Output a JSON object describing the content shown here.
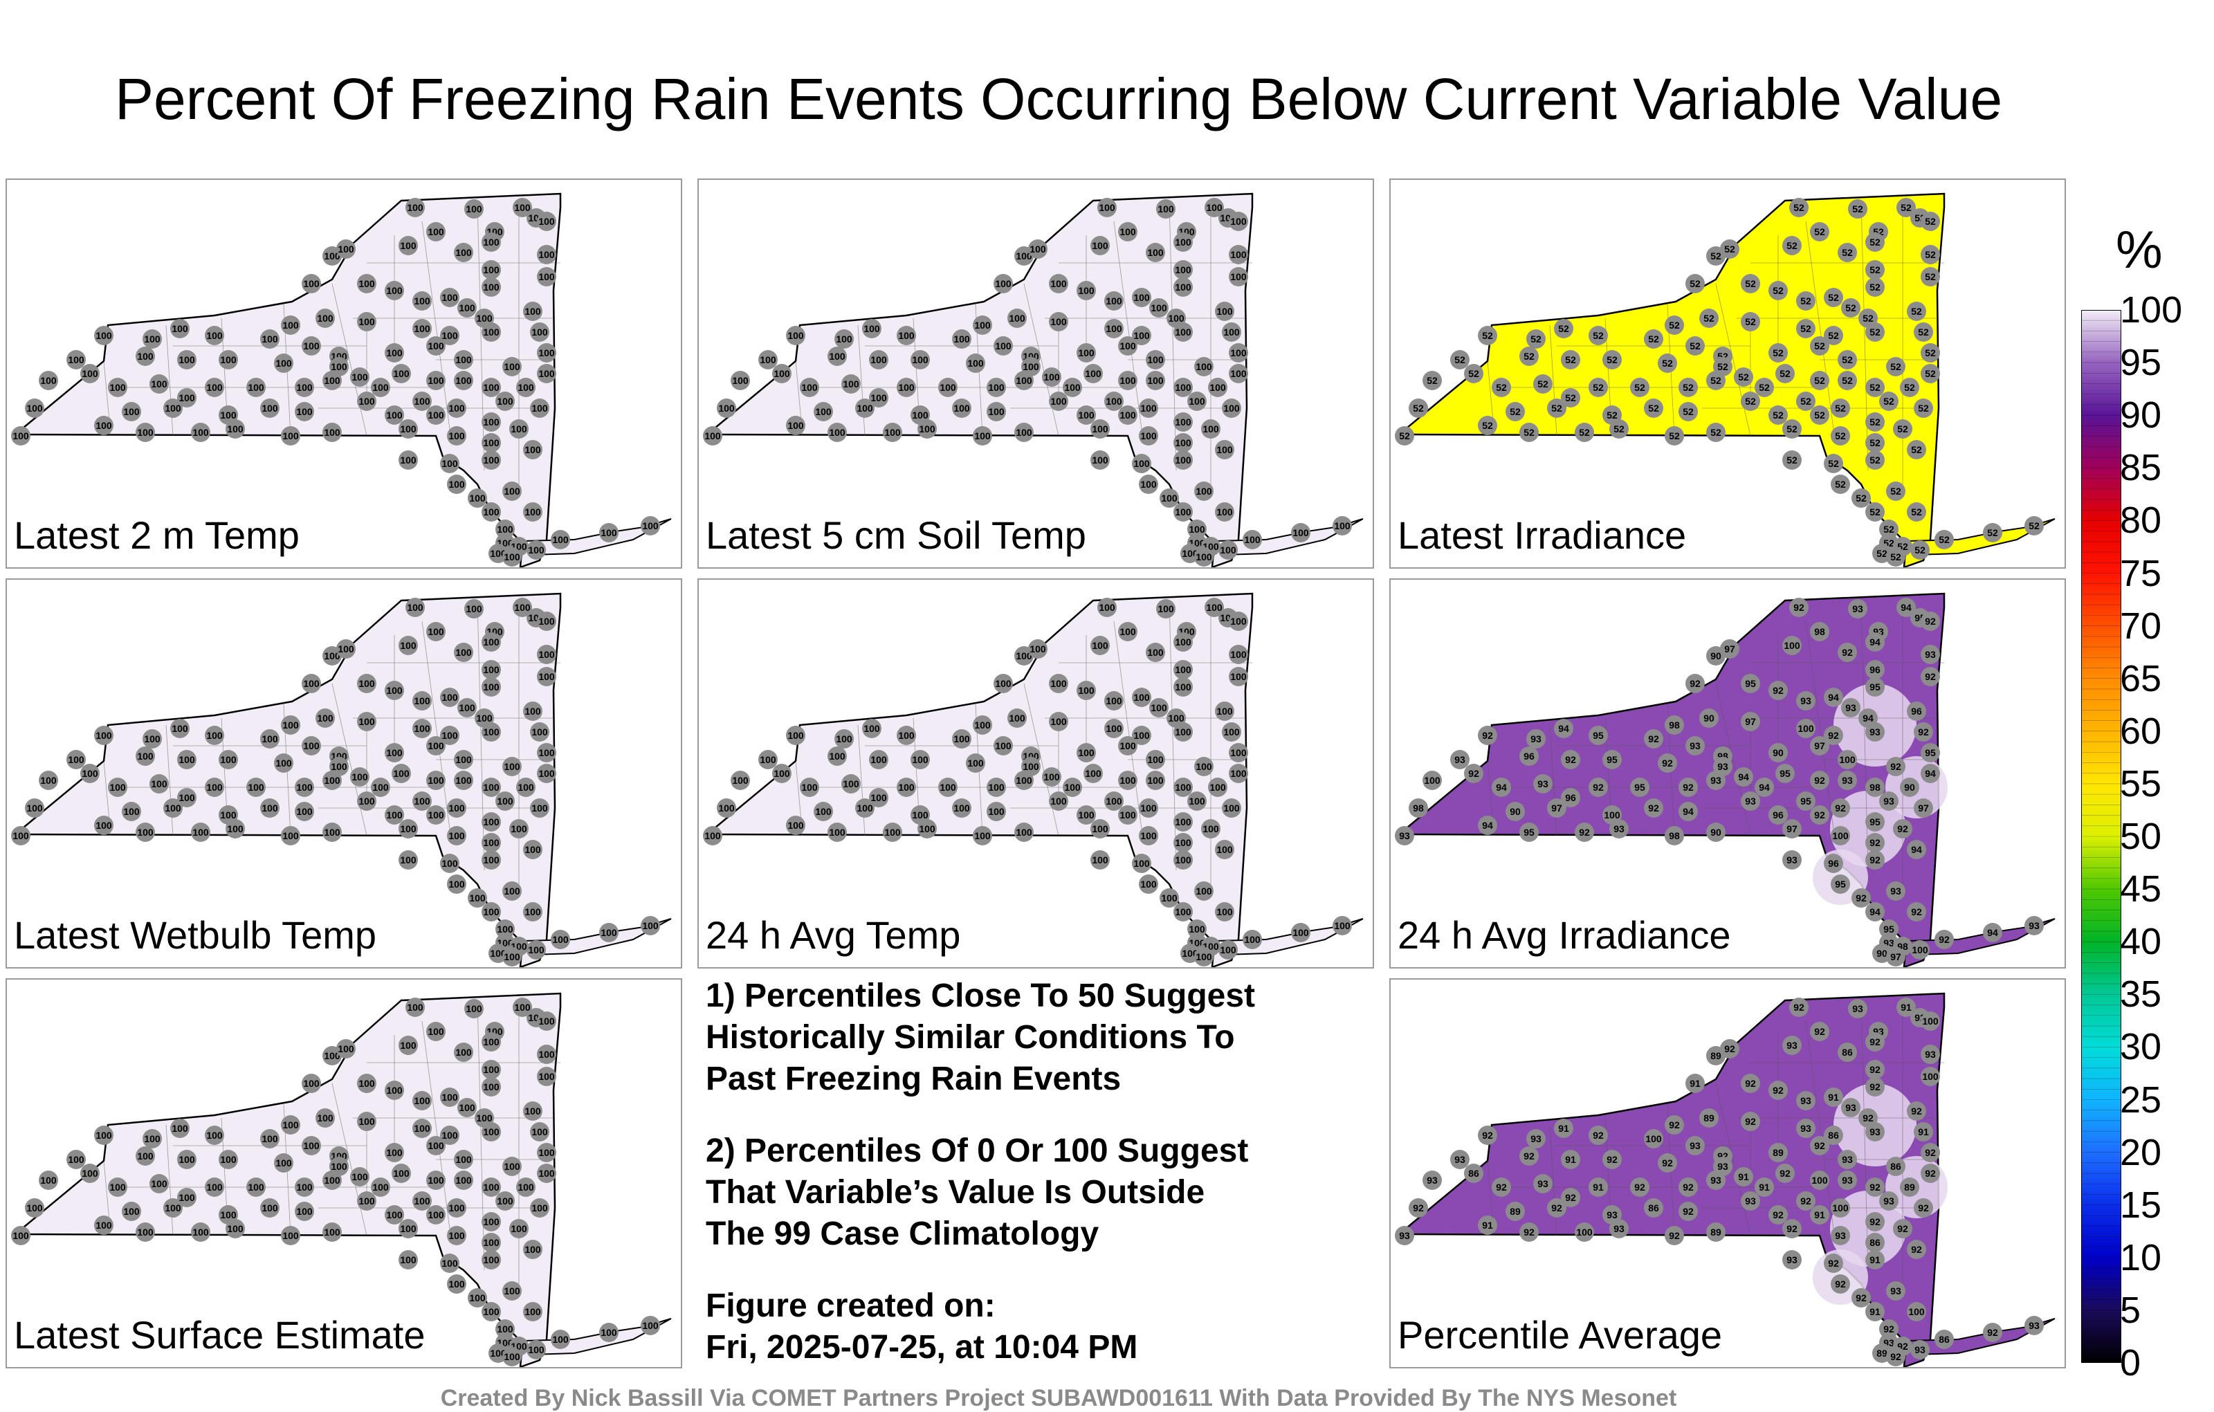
{
  "title": "Percent Of Freezing Rain Events Occurring Below Current Variable Value",
  "panels": [
    {
      "label": "Latest 2 m Temp",
      "value": 100,
      "fill": "#f1ecf5",
      "mode": "uniform"
    },
    {
      "label": "Latest 5 cm Soil Temp",
      "value": 100,
      "fill": "#f1ecf5",
      "mode": "uniform"
    },
    {
      "label": "Latest Irradiance",
      "value": 52,
      "fill": "#ffff00",
      "mode": "uniform"
    },
    {
      "label": "Latest Wetbulb Temp",
      "value": 100,
      "fill": "#f1ecf5",
      "mode": "uniform"
    },
    {
      "label": "24 h Avg Temp",
      "value": 100,
      "fill": "#f1ecf5",
      "mode": "uniform"
    },
    {
      "label": "24 h Avg Irradiance",
      "value": 92,
      "fill": "#8a4ab2",
      "mode": "mixed",
      "station_values": [
        92,
        93,
        94,
        95,
        92,
        93,
        98,
        90,
        97,
        100,
        92,
        94,
        93,
        96,
        92,
        95
      ]
    },
    {
      "label": "Latest Surface Estimate",
      "value": 100,
      "fill": "#f1ecf5",
      "mode": "uniform"
    },
    {
      "label": "Percentile Average",
      "value": 92,
      "fill": "#8a4ab2",
      "mode": "mixed",
      "station_values": [
        92,
        93,
        91,
        92,
        100,
        93,
        92,
        89,
        92,
        93,
        86,
        92,
        93,
        92,
        91,
        92
      ]
    }
  ],
  "notes": {
    "note1": "1) Percentiles Close To 50 Suggest\nHistorically Similar Conditions To\nPast Freezing Rain Events",
    "note2": "2) Percentiles Of 0 Or 100 Suggest\nThat Variable’s Value Is Outside\nThe 99 Case Climatology",
    "figure_created": "Figure created on:\nFri, 2025-07-25, at 10:04 PM"
  },
  "credit": "Created By Nick Bassill Via COMET Partners Project SUBAWD001611 With Data Provided By The NYS Mesonet",
  "colorbar": {
    "unit": "%",
    "min": 0,
    "max": 100,
    "ticks": [
      "0",
      "5",
      "10",
      "15",
      "20",
      "25",
      "30",
      "35",
      "40",
      "45",
      "50",
      "55",
      "60",
      "65",
      "70",
      "75",
      "80",
      "85",
      "90",
      "95",
      "100"
    ],
    "stops": [
      {
        "v": 0,
        "c": "#000000"
      },
      {
        "v": 5,
        "c": "#1a0a5a"
      },
      {
        "v": 10,
        "c": "#0000c8"
      },
      {
        "v": 15,
        "c": "#0a2eea"
      },
      {
        "v": 20,
        "c": "#1e6eff"
      },
      {
        "v": 25,
        "c": "#10b4ff"
      },
      {
        "v": 30,
        "c": "#00dcd8"
      },
      {
        "v": 35,
        "c": "#00c896"
      },
      {
        "v": 40,
        "c": "#00b428"
      },
      {
        "v": 45,
        "c": "#50c800"
      },
      {
        "v": 50,
        "c": "#dcf000"
      },
      {
        "v": 55,
        "c": "#ffe600"
      },
      {
        "v": 60,
        "c": "#ffb400"
      },
      {
        "v": 65,
        "c": "#ff8c00"
      },
      {
        "v": 70,
        "c": "#ff5000"
      },
      {
        "v": 75,
        "c": "#ff1400"
      },
      {
        "v": 80,
        "c": "#e60000"
      },
      {
        "v": 85,
        "c": "#a0005a"
      },
      {
        "v": 90,
        "c": "#5a1496"
      },
      {
        "v": 95,
        "c": "#9664c0"
      },
      {
        "v": 100,
        "c": "#f3eef7"
      }
    ]
  }
}
